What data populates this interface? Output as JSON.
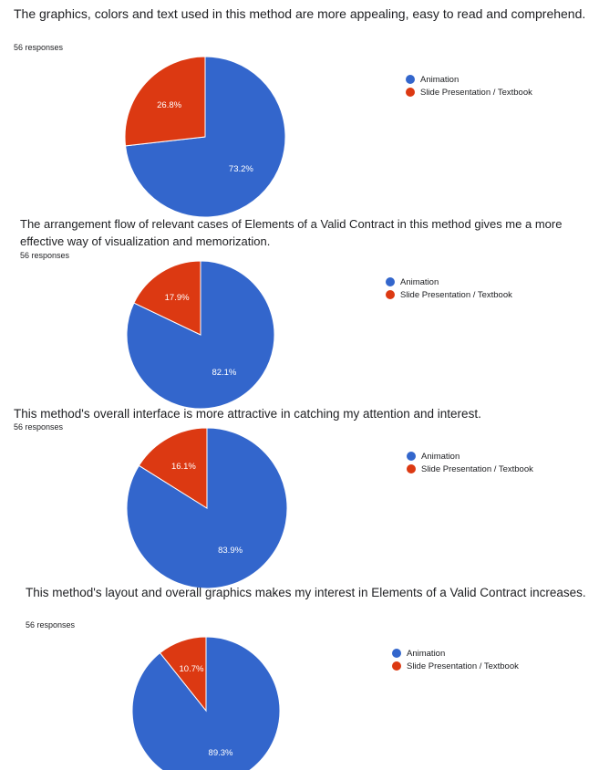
{
  "colors": {
    "animation": "#3366CC",
    "slide": "#DC3912"
  },
  "legend_labels": [
    "Animation",
    "Slide Presentation / Textbook"
  ],
  "chart_data": [
    {
      "type": "pie",
      "title": "The graphics, colors and text used in this method are more appealing, easy to read and comprehend.",
      "subtitle": "56 responses",
      "labels": [
        "Animation",
        "Slide Presentation / Textbook"
      ],
      "values": [
        73.2,
        26.8
      ],
      "value_labels": [
        "73.2%",
        "26.8%"
      ],
      "colors": [
        "#3366CC",
        "#DC3912"
      ],
      "legend_position": "right"
    },
    {
      "type": "pie",
      "title": "The arrangement flow of relevant cases of Elements of a Valid Contract in this method gives me a more effective way of visualization and memorization.",
      "subtitle": "56 responses",
      "labels": [
        "Animation",
        "Slide Presentation / Textbook"
      ],
      "values": [
        82.1,
        17.9
      ],
      "value_labels": [
        "82.1%",
        "17.9%"
      ],
      "colors": [
        "#3366CC",
        "#DC3912"
      ],
      "legend_position": "right"
    },
    {
      "type": "pie",
      "title": "This method's overall interface is more attractive in catching my attention and interest.",
      "subtitle": "56 responses",
      "labels": [
        "Animation",
        "Slide Presentation / Textbook"
      ],
      "values": [
        83.9,
        16.1
      ],
      "value_labels": [
        "83.9%",
        "16.1%"
      ],
      "colors": [
        "#3366CC",
        "#DC3912"
      ],
      "legend_position": "right"
    },
    {
      "type": "pie",
      "title": "This method's layout and overall graphics makes my interest in Elements of a Valid Contract increases.",
      "subtitle": "56 responses",
      "labels": [
        "Animation",
        "Slide Presentation / Textbook"
      ],
      "values": [
        89.3,
        10.7
      ],
      "value_labels": [
        "89.3%",
        "10.7%"
      ],
      "colors": [
        "#3366CC",
        "#DC3912"
      ],
      "legend_position": "right"
    }
  ]
}
